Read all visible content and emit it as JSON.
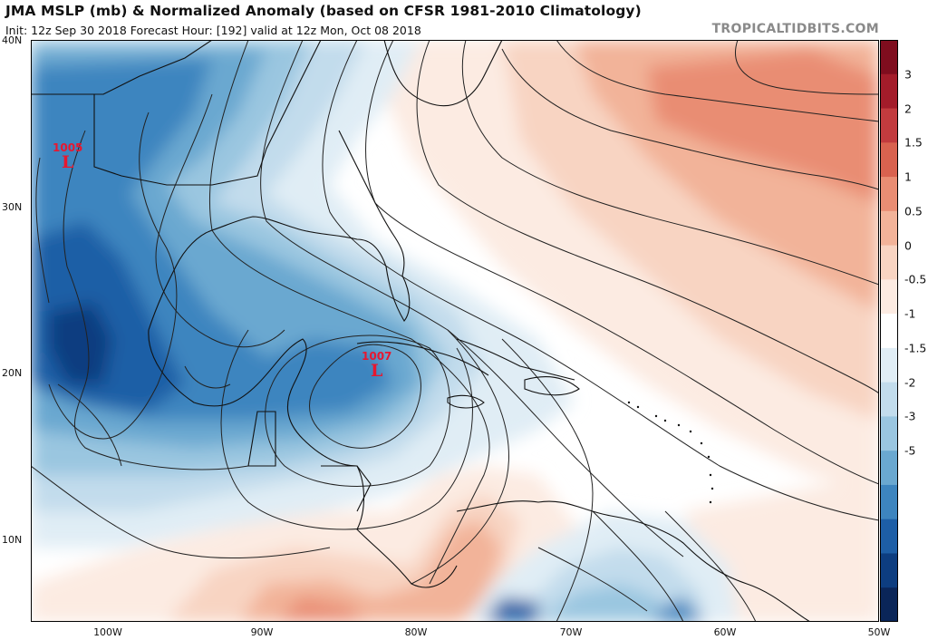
{
  "header": {
    "title": "JMA MSLP (mb) & Normalized Anomaly (based on CFSR 1981-2010 Climatology)",
    "subtitle": "Init: 12z Sep 30 2018   Forecast Hour: [192]   valid at 12z Mon, Oct 08 2018",
    "brand": "TROPICALTIDBITS.COM"
  },
  "map": {
    "lat_labels": [
      "40N",
      "30N",
      "20N",
      "10N"
    ],
    "lon_labels": [
      "100W",
      "90W",
      "80W",
      "70W",
      "60W",
      "50W"
    ],
    "lows": [
      {
        "pressure": "1005",
        "symbol": "L"
      },
      {
        "pressure": "1007",
        "symbol": "L"
      }
    ]
  },
  "colorbar": {
    "labels": [
      "3",
      "2",
      "1.5",
      "1",
      "0.5",
      "0",
      "-0.5",
      "-1",
      "-1.5",
      "-2",
      "-3",
      "-5"
    ],
    "colors": [
      "#7f0d1e",
      "#a31c2a",
      "#c23b3e",
      "#d9624f",
      "#e98d73",
      "#f2b399",
      "#f8d4c2",
      "#fcebe2",
      "#ffffff",
      "#e0edf5",
      "#c2dcec",
      "#9ac6e0",
      "#6aa8d0",
      "#3d85bf",
      "#1d5ea6",
      "#0d3d80",
      "#0a2558"
    ]
  }
}
